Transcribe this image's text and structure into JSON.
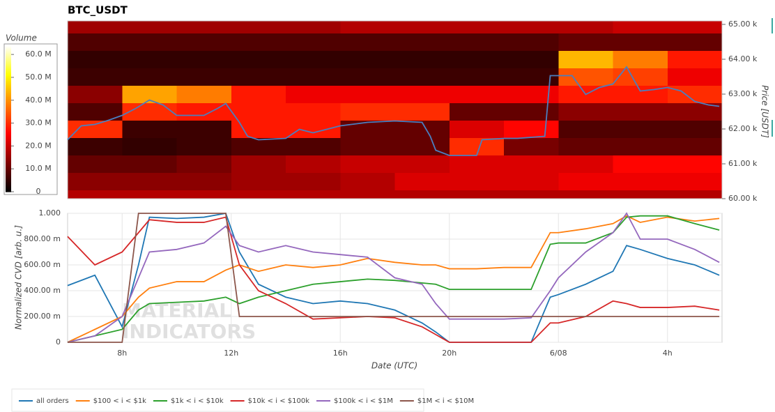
{
  "chart_data": [
    {
      "type": "heatmap",
      "title": "BTC_USDT",
      "ylabel": "Price [USDT]",
      "xlim": [
        6,
        30
      ],
      "ylim": [
        60000,
        65100
      ],
      "yticks": [
        {
          "value": 60000,
          "label": "60.00 k"
        },
        {
          "value": 61000,
          "label": "61.00 k"
        },
        {
          "value": 62000,
          "label": "62.00 k"
        },
        {
          "value": 63000,
          "label": "63.00 k"
        },
        {
          "value": 64000,
          "label": "64.00 k"
        },
        {
          "value": 65000,
          "label": "65.00 k"
        }
      ],
      "xbins": [
        6,
        8,
        10,
        12,
        14,
        16,
        18,
        20,
        22,
        24,
        26,
        28,
        30
      ],
      "ybins": [
        60000,
        60250,
        60750,
        61250,
        61750,
        62250,
        62750,
        63250,
        63750,
        64250,
        64750,
        65100
      ],
      "values": [
        [
          18000000,
          18000000,
          18000000,
          18000000,
          18000000,
          18000000,
          18000000,
          18000000,
          18000000,
          18000000,
          18000000,
          18000000
        ],
        [
          14000000,
          14000000,
          14000000,
          16000000,
          16000000,
          18000000,
          22000000,
          22000000,
          22000000,
          24000000,
          24000000,
          24000000
        ],
        [
          10000000,
          10000000,
          12000000,
          16000000,
          18000000,
          20000000,
          20000000,
          22000000,
          22000000,
          22000000,
          26000000,
          26000000
        ],
        [
          6000000,
          5000000,
          6000000,
          8000000,
          8000000,
          10000000,
          10000000,
          30000000,
          12000000,
          10000000,
          10000000,
          10000000
        ],
        [
          30000000,
          6000000,
          6000000,
          28000000,
          28000000,
          10000000,
          10000000,
          22000000,
          26000000,
          8000000,
          8000000,
          8000000
        ],
        [
          8000000,
          30000000,
          28000000,
          28000000,
          28000000,
          30000000,
          30000000,
          10000000,
          10000000,
          14000000,
          14000000,
          14000000
        ],
        [
          14000000,
          42000000,
          38000000,
          28000000,
          24000000,
          24000000,
          24000000,
          24000000,
          24000000,
          28000000,
          28000000,
          30000000
        ],
        [
          6000000,
          6000000,
          6000000,
          6000000,
          6000000,
          6000000,
          6000000,
          6000000,
          6000000,
          34000000,
          32000000,
          24000000
        ],
        [
          5000000,
          5000000,
          5000000,
          5000000,
          5000000,
          5000000,
          5000000,
          5000000,
          5000000,
          44000000,
          38000000,
          28000000
        ],
        [
          8000000,
          8000000,
          8000000,
          8000000,
          8000000,
          8000000,
          8000000,
          8000000,
          8000000,
          10000000,
          10000000,
          10000000
        ],
        [
          16000000,
          16000000,
          16000000,
          16000000,
          16000000,
          18000000,
          18000000,
          18000000,
          18000000,
          18000000,
          20000000,
          20000000
        ]
      ],
      "colorbar": {
        "label": "Volume",
        "lim": [
          0,
          64000000
        ],
        "ticks": [
          0,
          {
            "value": 10000000,
            "label": "10.0 M"
          },
          {
            "value": 20000000,
            "label": "20.0 M"
          },
          {
            "value": 30000000,
            "label": "30.0 M"
          },
          {
            "value": 40000000,
            "label": "40.0 M"
          },
          {
            "value": 50000000,
            "label": "50.0 M"
          },
          {
            "value": 60000000,
            "label": "60.0 M"
          }
        ]
      },
      "line": {
        "color": "#4a7fc0",
        "x": [
          6,
          6.5,
          7,
          7.5,
          8,
          8.5,
          9,
          9.5,
          10,
          11,
          11.5,
          11.8,
          12.3,
          12.6,
          13,
          14,
          14.5,
          15,
          16,
          17,
          18,
          19,
          19.3,
          19.5,
          20,
          21,
          21.2,
          22,
          22.5,
          23.5,
          23.7,
          24.5,
          25,
          25.5,
          26,
          26.5,
          27,
          27.5,
          28,
          28.5,
          29,
          29.5,
          29.9
        ],
        "values": [
          61690,
          62090,
          62130,
          62250,
          62390,
          62590,
          62830,
          62690,
          62390,
          62390,
          62590,
          62730,
          62190,
          61790,
          61690,
          61730,
          61990,
          61890,
          62090,
          62190,
          62230,
          62190,
          61790,
          61390,
          61240,
          61240,
          61690,
          61730,
          61730,
          61790,
          63530,
          63530,
          62990,
          63190,
          63290,
          63780,
          63090,
          63130,
          63190,
          63090,
          62790,
          62690,
          62650
        ]
      }
    },
    {
      "type": "line",
      "xlabel": "Date (UTC)",
      "ylabel": "Normalized CVD [arb. u.]",
      "xlim": [
        6,
        30
      ],
      "ylim": [
        0,
        1
      ],
      "grid": true,
      "legend": "bottom",
      "xticks": [
        {
          "value": 8,
          "label": "8h"
        },
        {
          "value": 12,
          "label": "12h"
        },
        {
          "value": 16,
          "label": "16h"
        },
        {
          "value": 20,
          "label": "20h"
        },
        {
          "value": 24,
          "label": "6/08"
        },
        {
          "value": 28,
          "label": "4h"
        }
      ],
      "yticks": [
        0,
        {
          "value": 0.2,
          "label": "200.00 m"
        },
        {
          "value": 0.4,
          "label": "400.00 m"
        },
        {
          "value": 0.6,
          "label": "600.00 m"
        },
        {
          "value": 0.8,
          "label": "800.00 m"
        },
        {
          "value": 1,
          "label": "1.000"
        }
      ],
      "watermark": [
        "MATERIAL",
        "INDICATORS"
      ],
      "x": [
        6,
        7,
        8,
        8.6,
        9,
        10,
        11,
        11.8,
        12.3,
        13,
        14,
        15,
        16,
        17,
        18,
        19,
        19.5,
        20,
        21,
        22,
        23,
        23.7,
        24,
        25,
        26,
        26.5,
        27,
        28,
        29,
        29.9
      ],
      "series": [
        {
          "name": "all orders",
          "color": "#1f77b4",
          "values": [
            0.44,
            0.52,
            0.12,
            0.6,
            0.97,
            0.96,
            0.97,
            1.0,
            0.7,
            0.45,
            0.35,
            0.3,
            0.32,
            0.3,
            0.25,
            0.15,
            0.08,
            0.0,
            0.0,
            0.0,
            0.0,
            0.35,
            0.37,
            0.45,
            0.55,
            0.75,
            0.72,
            0.65,
            0.6,
            0.52
          ]
        },
        {
          "name": "$100 < i < $1k",
          "color": "#ff7f0e",
          "values": [
            0.0,
            0.1,
            0.2,
            0.35,
            0.42,
            0.47,
            0.47,
            0.56,
            0.6,
            0.55,
            0.6,
            0.58,
            0.6,
            0.65,
            0.62,
            0.6,
            0.6,
            0.57,
            0.57,
            0.58,
            0.58,
            0.85,
            0.85,
            0.88,
            0.92,
            0.98,
            0.93,
            0.97,
            0.94,
            0.96
          ]
        },
        {
          "name": "$1k < i < $10k",
          "color": "#2ca02c",
          "values": [
            0.0,
            0.05,
            0.1,
            0.25,
            0.3,
            0.31,
            0.32,
            0.35,
            0.3,
            0.35,
            0.4,
            0.45,
            0.47,
            0.49,
            0.48,
            0.46,
            0.45,
            0.41,
            0.41,
            0.41,
            0.41,
            0.76,
            0.77,
            0.77,
            0.85,
            0.97,
            0.98,
            0.98,
            0.92,
            0.87
          ]
        },
        {
          "name": "$10k < i < $100k",
          "color": "#d62728",
          "values": [
            0.82,
            0.6,
            0.7,
            0.85,
            0.95,
            0.93,
            0.93,
            0.97,
            0.6,
            0.4,
            0.3,
            0.18,
            0.19,
            0.2,
            0.19,
            0.12,
            0.06,
            0.0,
            0.0,
            0.0,
            0.0,
            0.15,
            0.15,
            0.2,
            0.32,
            0.3,
            0.27,
            0.27,
            0.28,
            0.25
          ]
        },
        {
          "name": "$100k < i < $1M",
          "color": "#9467bd",
          "values": [
            0.0,
            0.05,
            0.2,
            0.5,
            0.7,
            0.72,
            0.77,
            0.9,
            0.75,
            0.7,
            0.75,
            0.7,
            0.68,
            0.66,
            0.5,
            0.45,
            0.3,
            0.18,
            0.18,
            0.18,
            0.19,
            0.4,
            0.5,
            0.7,
            0.85,
            1.0,
            0.8,
            0.8,
            0.72,
            0.62
          ]
        },
        {
          "name": "$1M < i < $10M",
          "color": "#8c564b",
          "values": [
            0.0,
            0.0,
            0.0,
            1.0,
            1.0,
            1.0,
            1.0,
            1.0,
            0.2,
            0.2,
            0.2,
            0.2,
            0.2,
            0.2,
            0.2,
            0.2,
            0.2,
            0.2,
            0.2,
            0.2,
            0.2,
            0.2,
            0.2,
            0.2,
            0.2,
            0.2,
            0.2,
            0.2,
            0.2,
            0.2
          ]
        }
      ]
    }
  ]
}
